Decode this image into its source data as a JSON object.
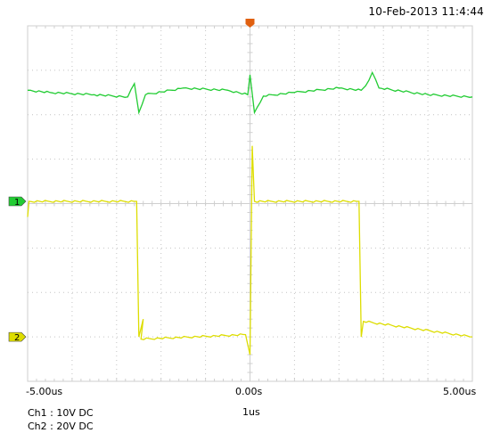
{
  "timestamp": "10-Feb-2013 11:4:44",
  "colors": {
    "background": "#ffffff",
    "grid": "#cfcfcf",
    "grid_dot": "#c4c4c4",
    "ch1": "#22cc33",
    "ch2": "#dddd00",
    "trigger": "#e06010"
  },
  "channels": [
    {
      "id": "1",
      "marker": "1",
      "info": "Ch1 : 10V  DC",
      "color": "#22cc33"
    },
    {
      "id": "2",
      "marker": "2",
      "info": "Ch2 : 20V  DC",
      "color": "#dddd00"
    }
  ],
  "time_axis": {
    "left": "-5.00us",
    "center": "0.00s",
    "right": "5.00us",
    "per_div": "1us"
  },
  "chart_data": {
    "type": "line",
    "x_unit": "us",
    "xlim": [
      -5,
      5
    ],
    "series": [
      {
        "id": "ch1",
        "x": [
          -5.0,
          -4.5,
          -3.5,
          -2.75,
          -2.6,
          -2.5,
          -2.35,
          -1.5,
          -0.5,
          -0.05,
          0.0,
          0.1,
          0.3,
          1.0,
          2.0,
          2.5,
          2.6,
          2.75,
          2.9,
          4.0,
          5.0
        ],
        "y_div": [
          2.55,
          2.5,
          2.45,
          2.4,
          2.7,
          2.05,
          2.45,
          2.6,
          2.55,
          2.45,
          2.9,
          2.05,
          2.42,
          2.5,
          2.6,
          2.55,
          2.65,
          2.95,
          2.6,
          2.45,
          2.4
        ]
      },
      {
        "id": "ch2",
        "x": [
          -5.0,
          -4.97,
          -2.55,
          -2.5,
          -2.4,
          -2.45,
          -0.1,
          0.0,
          0.05,
          0.1,
          2.45,
          2.5,
          2.55,
          5.0
        ],
        "y_div": [
          -0.3,
          0.05,
          0.05,
          -3.0,
          -2.6,
          -3.05,
          -2.95,
          -3.4,
          1.3,
          0.05,
          0.05,
          -3.0,
          -2.65,
          -3.0
        ]
      }
    ]
  }
}
